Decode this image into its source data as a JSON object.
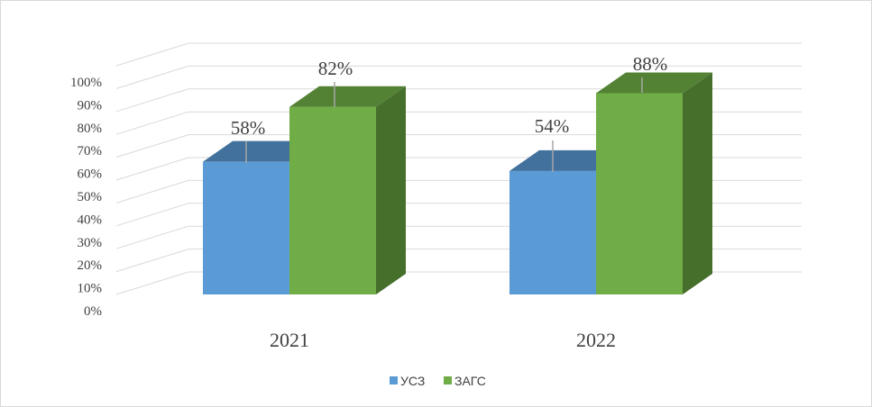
{
  "chart_data": {
    "type": "bar",
    "style": "3d-clustered-column",
    "categories": [
      "2021",
      "2022"
    ],
    "series": [
      {
        "name": "УСЗ",
        "values": [
          58,
          54
        ],
        "labels": [
          "58%",
          "54%"
        ]
      },
      {
        "name": "ЗАГС",
        "values": [
          82,
          88
        ],
        "labels": [
          "82%",
          "88%"
        ]
      }
    ],
    "y_ticks": [
      "0%",
      "10%",
      "20%",
      "30%",
      "40%",
      "50%",
      "60%",
      "70%",
      "80%",
      "90%",
      "100%"
    ],
    "ylim": [
      0,
      100
    ],
    "grid": true,
    "legend_position": "bottom",
    "colors": {
      "УСЗ": {
        "front": "#5b9bd5",
        "top": "#41719c",
        "side": "#2e5f8a"
      },
      "ЗАГС": {
        "front": "#70ad47",
        "top": "#548235",
        "side": "#466f2c"
      },
      "grid": "#d9d9d9",
      "text": "#404040"
    }
  }
}
